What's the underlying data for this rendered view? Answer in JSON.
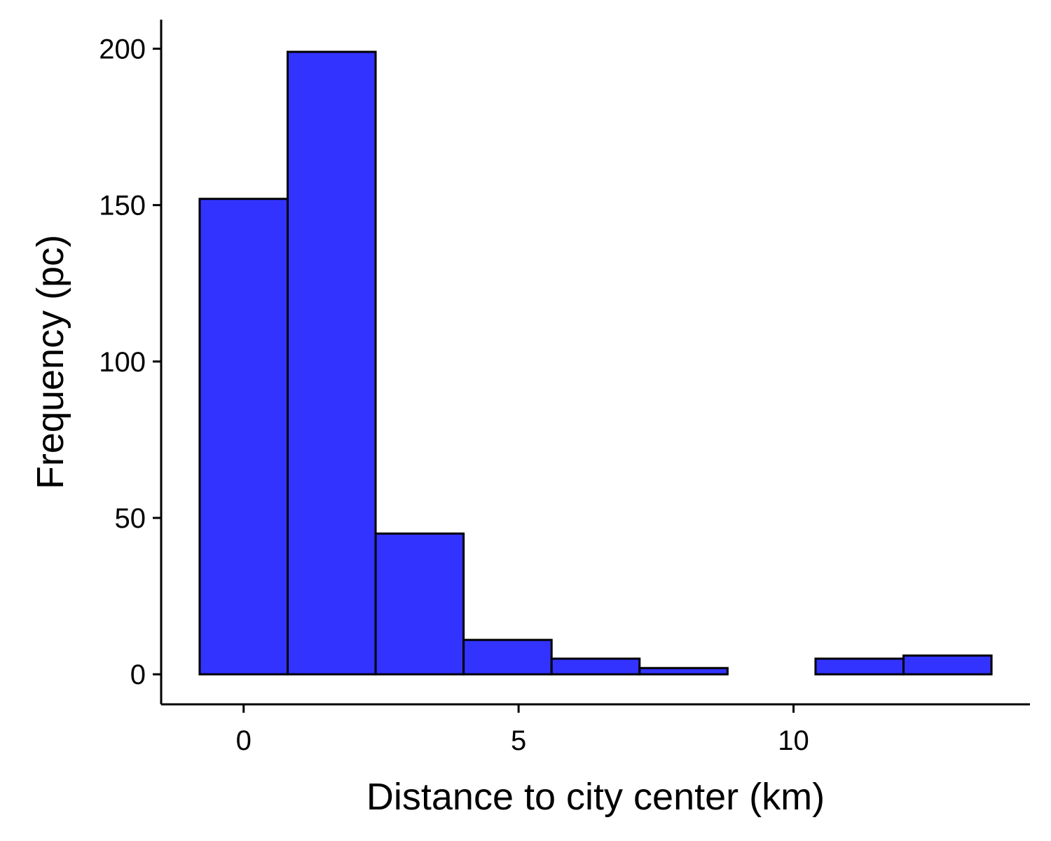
{
  "chart_data": {
    "type": "bar",
    "subtype": "histogram",
    "title": "",
    "xlabel": "Distance to city center (km)",
    "ylabel": "Frequency (pc)",
    "bins": [
      {
        "start": -0.8,
        "end": 0.8,
        "count": 152
      },
      {
        "start": 0.8,
        "end": 2.4,
        "count": 199
      },
      {
        "start": 2.4,
        "end": 4.0,
        "count": 45
      },
      {
        "start": 4.0,
        "end": 5.6,
        "count": 11
      },
      {
        "start": 5.6,
        "end": 7.2,
        "count": 5
      },
      {
        "start": 7.2,
        "end": 8.8,
        "count": 2
      },
      {
        "start": 8.8,
        "end": 10.4,
        "count": 0
      },
      {
        "start": 10.4,
        "end": 12.0,
        "count": 5
      },
      {
        "start": 12.0,
        "end": 13.6,
        "count": 6
      }
    ],
    "xlim": [
      -1.5,
      14.3
    ],
    "ylim": [
      -9.6,
      209.3
    ],
    "x_ticks": [
      0,
      5,
      10
    ],
    "y_ticks": [
      0,
      50,
      100,
      150,
      200
    ],
    "bar_color": "#3333ff",
    "bar_edge_color": "#000000",
    "grid": false,
    "legend": "none"
  }
}
